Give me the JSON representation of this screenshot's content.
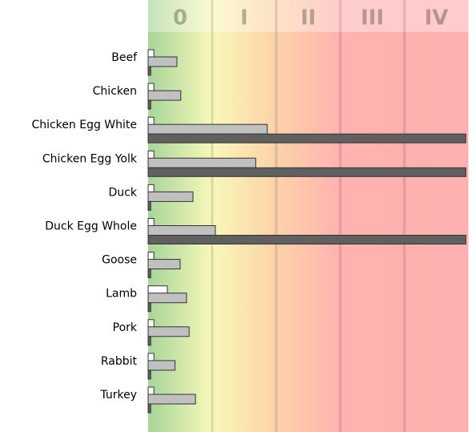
{
  "chart_data": {
    "type": "bar",
    "orientation": "horizontal",
    "categories": [
      "Beef",
      "Chicken",
      "Chicken Egg White",
      "Chicken Egg Yolk",
      "Duck",
      "Duck Egg Whole",
      "Goose",
      "Lamb",
      "Pork",
      "Rabbit",
      "Turkey"
    ],
    "series": [
      {
        "color": "#ffffff",
        "values": [
          0.09,
          0.09,
          0.09,
          0.09,
          0.09,
          0.09,
          0.09,
          0.3,
          0.09,
          0.09,
          0.09
        ]
      },
      {
        "color": "#c0c0c0",
        "values": [
          0.45,
          0.51,
          1.86,
          1.68,
          0.7,
          1.05,
          0.5,
          0.6,
          0.64,
          0.42,
          0.74
        ]
      },
      {
        "color": "#606060",
        "values": [
          0.04,
          0.04,
          4.96,
          4.96,
          0.04,
          4.96,
          0.04,
          0.04,
          0.04,
          0.04,
          0.04
        ]
      }
    ],
    "xlim": [
      0,
      5
    ],
    "xticks": [
      {
        "value": 0.5,
        "label": "0"
      },
      {
        "value": 1.5,
        "label": "I"
      },
      {
        "value": 2.5,
        "label": "II"
      },
      {
        "value": 3.5,
        "label": "III"
      },
      {
        "value": 4.5,
        "label": "IV"
      }
    ]
  }
}
